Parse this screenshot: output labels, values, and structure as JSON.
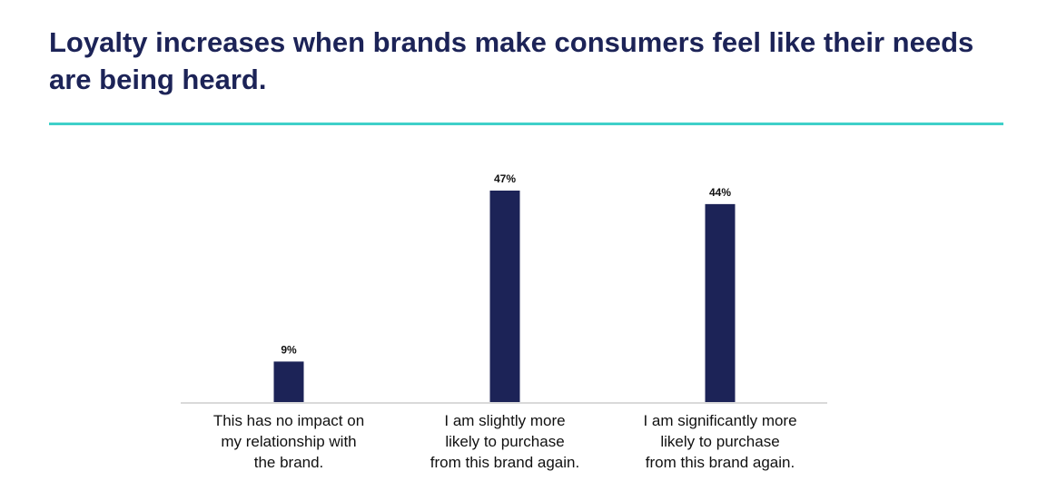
{
  "title": "Loyalty increases when brands make consumers feel like their needs are being heard.",
  "colors": {
    "title": "#1c2357",
    "rule": "#3fd0c9",
    "bar": "#1c2357",
    "baseline": "#d9d9d9"
  },
  "chart_data": {
    "type": "bar",
    "categories": [
      [
        "This has no impact on",
        "my relationship with",
        "the brand."
      ],
      [
        "I am slightly more",
        "likely to purchase",
        "from this brand again."
      ],
      [
        "I am significantly more",
        "likely to purchase",
        "from this brand again."
      ]
    ],
    "values": [
      9,
      47,
      44
    ],
    "data_labels": [
      "9%",
      "47%",
      "44%"
    ],
    "ylim": [
      0,
      50
    ],
    "grid": false,
    "legend": "none"
  }
}
